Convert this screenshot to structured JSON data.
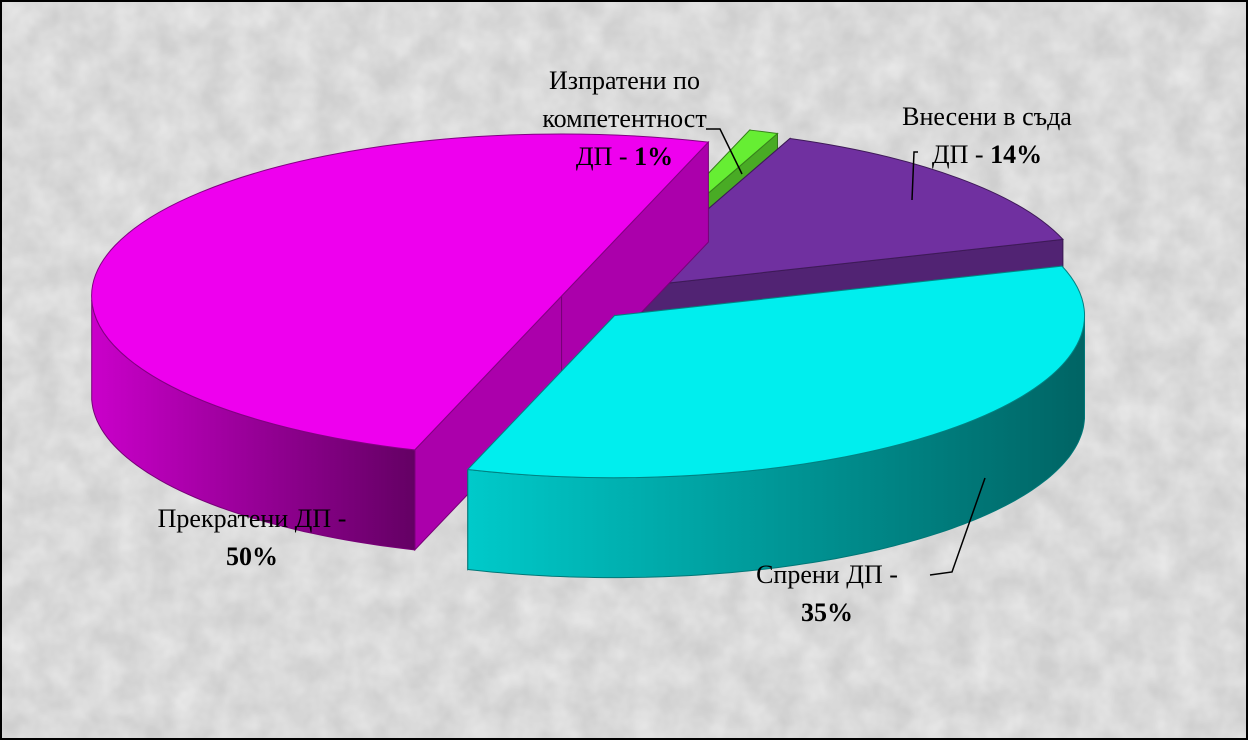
{
  "chart_data": {
    "type": "pie3d",
    "categories": [
      "Изпратени по компетентност ДП -",
      "Внесени в съда ДП -",
      "Спрени ДП -",
      "Прекратени ДП -"
    ],
    "values": [
      1,
      14,
      35,
      50
    ],
    "value_labels": [
      "1%",
      "14%",
      "35%",
      "50%"
    ],
    "colors": [
      "#66ee33",
      "#7030a0",
      "#00eeee",
      "#ee00ee"
    ]
  }
}
